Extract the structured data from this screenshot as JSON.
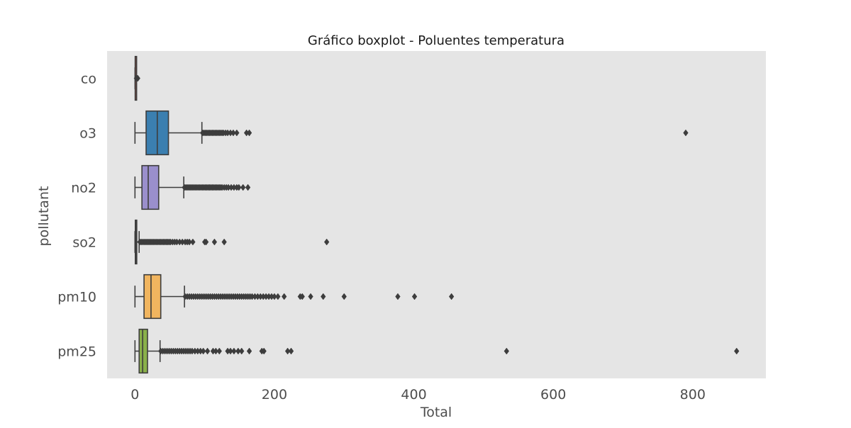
{
  "chart_data": {
    "type": "boxplot",
    "orientation": "horizontal",
    "title": "Gráfico boxplot - Poluentes temperatura",
    "xlabel": "Total",
    "ylabel": "pollutant",
    "xlim": [
      -40,
      905
    ],
    "xticks": [
      0,
      200,
      400,
      600,
      800
    ],
    "grid": false,
    "background": "#e5e5e5",
    "categories": [
      "co",
      "o3",
      "no2",
      "so2",
      "pm10",
      "pm25"
    ],
    "series": [
      {
        "category": "co",
        "color": "#e05a46",
        "whisker_low": 0.1,
        "q1": 0.3,
        "median": 0.5,
        "q3": 0.7,
        "whisker_high": 1.2,
        "outliers": [
          2,
          3,
          4
        ]
      },
      {
        "category": "o3",
        "color": "#3b7fb0",
        "whisker_low": 0,
        "q1": 16,
        "median": 32,
        "q3": 48,
        "whisker_high": 96,
        "outliers": [
          97,
          99,
          101,
          103,
          105,
          107,
          109,
          111,
          113,
          115,
          117,
          119,
          121,
          123,
          125,
          127,
          130,
          133,
          137,
          141,
          146,
          160,
          164,
          790
        ]
      },
      {
        "category": "no2",
        "color": "#9a8fcc",
        "whisker_low": 0,
        "q1": 10,
        "median": 19,
        "q3": 34,
        "whisker_high": 70,
        "outliers": [
          71,
          73,
          75,
          77,
          79,
          81,
          83,
          85,
          87,
          89,
          91,
          93,
          95,
          97,
          99,
          101,
          103,
          105,
          107,
          109,
          111,
          113,
          115,
          117,
          119,
          121,
          123,
          125,
          128,
          131,
          134,
          138,
          142,
          146,
          149,
          155,
          162
        ]
      },
      {
        "category": "so2",
        "color": "#8a8a8a",
        "whisker_low": 0,
        "q1": 0.5,
        "median": 1.2,
        "q3": 2.5,
        "whisker_high": 6,
        "outliers": [
          7,
          9,
          11,
          13,
          15,
          17,
          19,
          21,
          23,
          25,
          27,
          29,
          31,
          33,
          35,
          37,
          39,
          41,
          43,
          45,
          47,
          49,
          51,
          54,
          57,
          60,
          64,
          68,
          72,
          75,
          78,
          83,
          100,
          102,
          114,
          128,
          275
        ]
      },
      {
        "category": "pm10",
        "color": "#f1b55f",
        "whisker_low": 0,
        "q1": 13,
        "median": 23,
        "q3": 37,
        "whisker_high": 71,
        "outliers": [
          72,
          75,
          78,
          81,
          84,
          87,
          90,
          93,
          96,
          99,
          102,
          105,
          108,
          111,
          114,
          117,
          120,
          123,
          126,
          129,
          132,
          135,
          138,
          141,
          144,
          147,
          150,
          153,
          156,
          159,
          162,
          165,
          168,
          172,
          176,
          180,
          184,
          188,
          192,
          196,
          200,
          205,
          214,
          237,
          240,
          252,
          270,
          300,
          377,
          401,
          454
        ]
      },
      {
        "category": "pm25",
        "color": "#8ab04a",
        "whisker_low": 0,
        "q1": 6,
        "median": 11,
        "q3": 18,
        "whisker_high": 36,
        "outliers": [
          37,
          40,
          43,
          46,
          49,
          52,
          55,
          58,
          61,
          64,
          67,
          70,
          73,
          76,
          79,
          82,
          86,
          90,
          94,
          98,
          104,
          112,
          116,
          121,
          133,
          137,
          142,
          148,
          153,
          164,
          182,
          185,
          219,
          224,
          533,
          863
        ]
      }
    ]
  }
}
